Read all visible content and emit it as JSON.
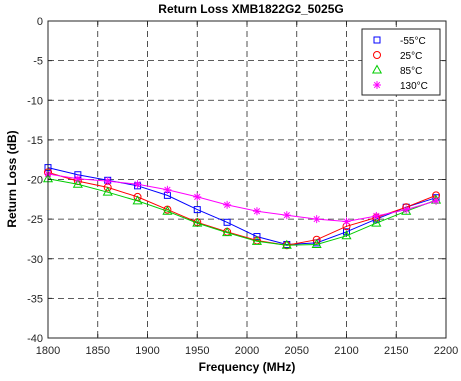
{
  "chart_data": {
    "type": "line",
    "title": "Return Loss  XMB1822G2_5025G",
    "xlabel": "Frequency (MHz)",
    "ylabel": "Return Loss (dB)",
    "xlim": [
      1800,
      2200
    ],
    "ylim": [
      -40,
      0
    ],
    "xticks": [
      1800,
      1850,
      1900,
      1950,
      2000,
      2050,
      2100,
      2150,
      2200
    ],
    "yticks": [
      0,
      -5,
      -10,
      -15,
      -20,
      -25,
      -30,
      -35,
      -40
    ],
    "grid": true,
    "grid_style": "dashed",
    "legend_position": "top-right",
    "x": [
      1800,
      1830,
      1860,
      1890,
      1920,
      1950,
      1980,
      2010,
      2040,
      2070,
      2100,
      2130,
      2160,
      2190
    ],
    "series": [
      {
        "name": "-55°C",
        "marker": "square",
        "color": "#0000ff",
        "values": [
          -18.5,
          -19.4,
          -20.1,
          -20.8,
          -22.0,
          -23.8,
          -25.4,
          -27.2,
          -28.2,
          -28.0,
          -26.6,
          -25.0,
          -23.5,
          -22.3
        ]
      },
      {
        "name": "25°C",
        "marker": "circle",
        "color": "#ff0000",
        "values": [
          -19.1,
          -20.2,
          -21.0,
          -22.2,
          -23.8,
          -25.4,
          -26.6,
          -27.7,
          -28.3,
          -27.6,
          -25.9,
          -24.8,
          -23.5,
          -22.0
        ]
      },
      {
        "name": "85°C",
        "marker": "triangle",
        "color": "#00cc00",
        "values": [
          -19.9,
          -20.6,
          -21.6,
          -22.7,
          -24.0,
          -25.5,
          -26.7,
          -27.8,
          -28.3,
          -28.2,
          -27.1,
          -25.5,
          -24.0,
          -22.6
        ]
      },
      {
        "name": "130°C",
        "marker": "star",
        "color": "#ff00ff",
        "values": [
          -19.3,
          -19.9,
          -20.2,
          -20.6,
          -21.3,
          -22.2,
          -23.2,
          -24.0,
          -24.5,
          -25.0,
          -25.3,
          -24.6,
          -23.8,
          -22.7
        ]
      }
    ]
  }
}
